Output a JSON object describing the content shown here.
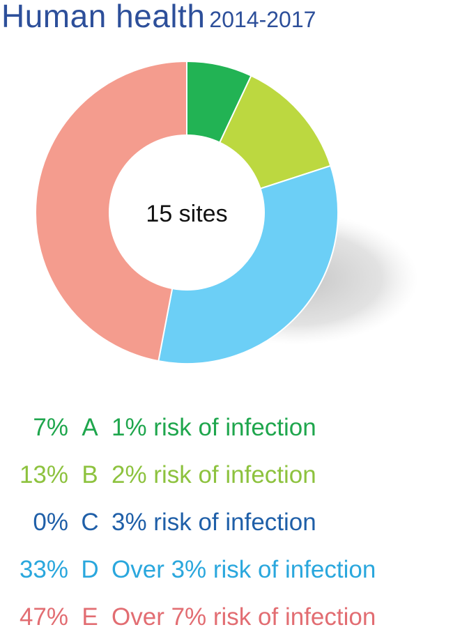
{
  "title": {
    "main": "Human health",
    "years": "2014-2017"
  },
  "chart_data": {
    "type": "pie",
    "center_label": "15 sites",
    "slices": [
      {
        "pct_label": "7%",
        "value": 7,
        "letter": "A",
        "desc": "1% risk of infection",
        "color": "#22b354",
        "text_color": "#1fa64d"
      },
      {
        "pct_label": "13%",
        "value": 13,
        "letter": "B",
        "desc": "2% risk of infection",
        "color": "#bcd840",
        "text_color": "#8dc23e"
      },
      {
        "pct_label": "0%",
        "value": 0,
        "letter": "C",
        "desc": "3% risk of infection",
        "color": "#1f5fa8",
        "text_color": "#1f5fa8"
      },
      {
        "pct_label": "33%",
        "value": 33,
        "letter": "D",
        "desc": "Over 3% risk of infection",
        "color": "#6ccff6",
        "text_color": "#2aa7dd"
      },
      {
        "pct_label": "47%",
        "value": 47,
        "letter": "E",
        "desc": "Over 7% risk of infection",
        "color": "#f49c8e",
        "text_color": "#e26d72"
      }
    ]
  }
}
